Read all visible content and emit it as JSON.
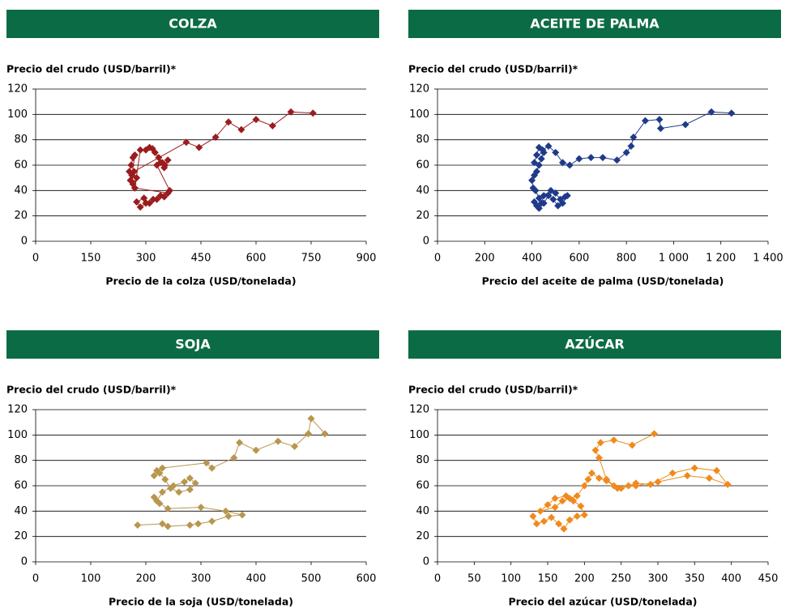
{
  "chart_data": [
    {
      "type": "line",
      "marker": "diamond",
      "title": "COLZA",
      "ylabel": "Precio del crudo (USD/barril)*",
      "xlabel": "Precio de la colza (USD/tonelada)",
      "color": "#9b1c1f",
      "x": [
        255,
        260,
        265,
        270,
        262,
        258,
        265,
        275,
        270,
        285,
        300,
        310,
        318,
        325,
        335,
        345,
        352,
        360,
        350,
        340,
        330,
        365,
        340,
        320,
        300,
        285,
        275,
        295,
        310,
        330,
        350,
        360,
        270,
        262,
        268,
        410,
        445,
        490,
        525,
        560,
        600,
        645,
        695,
        755
      ],
      "y": [
        55,
        60,
        66,
        68,
        52,
        48,
        45,
        50,
        42,
        72,
        72,
        74,
        73,
        70,
        66,
        62,
        60,
        64,
        58,
        62,
        60,
        40,
        36,
        33,
        30,
        27,
        31,
        34,
        30,
        33,
        35,
        38,
        42,
        47,
        55,
        78,
        74,
        82,
        94,
        88,
        96,
        91,
        102,
        101
      ],
      "xlim": [
        0,
        900
      ],
      "xticks": [
        0,
        150,
        300,
        450,
        600,
        750,
        900
      ],
      "ylim": [
        0,
        120
      ],
      "yticks": [
        0,
        20,
        40,
        60,
        80,
        100,
        120
      ],
      "grid": true
    },
    {
      "type": "line",
      "marker": "diamond",
      "title": "ACEITE DE PALMA",
      "ylabel": "Precio del crudo (USD/barril)*",
      "xlabel": "Precio del aceite de palma (USD/tonelada)",
      "color": "#1f3a8a",
      "x": [
        410,
        420,
        430,
        440,
        450,
        480,
        500,
        520,
        540,
        550,
        530,
        510,
        490,
        470,
        450,
        430,
        415,
        405,
        400,
        410,
        420,
        430,
        440,
        450,
        420,
        410,
        430,
        445,
        470,
        500,
        530,
        560,
        600,
        650,
        700,
        760,
        800,
        820,
        830,
        880,
        940,
        945,
        1050,
        1160,
        1245
      ],
      "y": [
        31,
        28,
        26,
        30,
        36,
        40,
        38,
        33,
        35,
        36,
        30,
        28,
        33,
        36,
        30,
        34,
        40,
        42,
        48,
        52,
        55,
        60,
        65,
        70,
        68,
        62,
        74,
        72,
        75,
        70,
        62,
        60,
        65,
        66,
        66,
        64,
        70,
        75,
        82,
        95,
        96,
        89,
        92,
        102,
        101
      ],
      "xlim": [
        0,
        1400
      ],
      "xticks": [
        0,
        200,
        400,
        600,
        800,
        {
          "value": 1000,
          "label": "1 000"
        },
        {
          "value": 1200,
          "label": "1 200"
        },
        {
          "value": 1400,
          "label": "1 400"
        }
      ],
      "ylim": [
        0,
        120
      ],
      "yticks": [
        0,
        20,
        40,
        60,
        80,
        100,
        120
      ],
      "grid": true
    },
    {
      "type": "line",
      "marker": "diamond",
      "title": "SOJA",
      "ylabel": "Precio del crudo (USD/barril)*",
      "xlabel": "Precio de la soja (USD/tonelada)",
      "color": "#b8964e",
      "x": [
        185,
        230,
        240,
        280,
        295,
        320,
        350,
        375,
        345,
        300,
        240,
        225,
        215,
        220,
        230,
        250,
        270,
        280,
        290,
        280,
        260,
        245,
        235,
        225,
        215,
        220,
        230,
        310,
        320,
        360,
        370,
        400,
        440,
        470,
        495,
        500,
        525
      ],
      "y": [
        29,
        30,
        28,
        29,
        30,
        32,
        36,
        37,
        40,
        43,
        42,
        46,
        51,
        48,
        55,
        60,
        63,
        66,
        62,
        57,
        55,
        58,
        65,
        70,
        68,
        72,
        74,
        78,
        74,
        82,
        94,
        88,
        95,
        91,
        101,
        113,
        101
      ],
      "xlim": [
        0,
        600
      ],
      "xticks": [
        0,
        100,
        200,
        300,
        400,
        500,
        600
      ],
      "ylim": [
        0,
        120
      ],
      "yticks": [
        0,
        20,
        40,
        60,
        80,
        100,
        120
      ],
      "grid": true
    },
    {
      "type": "line",
      "marker": "diamond",
      "title": "AZÚCAR",
      "ylabel": "Precio del crudo (USD/barril)*",
      "xlabel": "Precio del azúcar (USD/tonelada)",
      "color": "#f08a1c",
      "x": [
        130,
        135,
        145,
        155,
        165,
        172,
        180,
        190,
        200,
        195,
        185,
        175,
        160,
        150,
        140,
        160,
        170,
        180,
        190,
        200,
        205,
        210,
        220,
        230,
        240,
        250,
        260,
        270,
        290,
        320,
        350,
        380,
        395,
        370,
        340,
        300,
        270,
        245,
        230,
        220,
        215,
        222,
        240,
        265,
        295
      ],
      "y": [
        36,
        30,
        32,
        35,
        30,
        26,
        33,
        36,
        37,
        44,
        48,
        52,
        50,
        45,
        40,
        43,
        48,
        50,
        52,
        60,
        65,
        70,
        66,
        64,
        60,
        58,
        60,
        62,
        61,
        70,
        74,
        72,
        61,
        66,
        68,
        63,
        60,
        58,
        65,
        82,
        88,
        94,
        96,
        92,
        101
      ],
      "xlim": [
        0,
        450
      ],
      "xticks": [
        0,
        50,
        100,
        150,
        200,
        250,
        300,
        350,
        400,
        450
      ],
      "ylim": [
        0,
        120
      ],
      "yticks": [
        0,
        20,
        40,
        60,
        80,
        100,
        120
      ],
      "grid": true
    }
  ]
}
